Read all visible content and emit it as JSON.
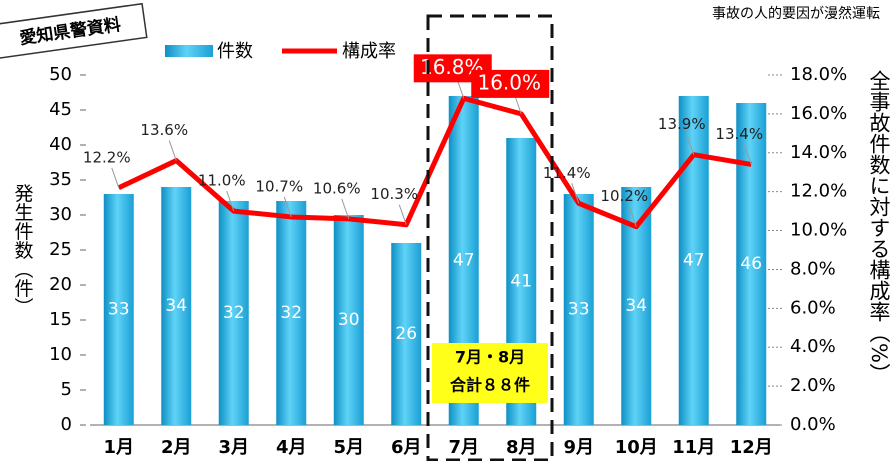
{
  "chart_data": {
    "type": "bar_line",
    "source": "愛知県警資料",
    "subtitle": "事故の人的要因が漫然運転",
    "ylabel": "発生件数（件）",
    "y2label": "全事故件数に対する構成率（%）",
    "annotation": [
      "7月・8月",
      "合計８８件"
    ],
    "categories": [
      "1月",
      "2月",
      "3月",
      "4月",
      "5月",
      "6月",
      "7月",
      "8月",
      "9月",
      "10月",
      "11月",
      "12月"
    ],
    "series": [
      {
        "name": "件数",
        "type": "bar",
        "color": "#1fb4e6",
        "values": [
          33,
          34,
          32,
          32,
          30,
          26,
          47,
          41,
          33,
          34,
          47,
          46
        ]
      },
      {
        "name": "構成率",
        "type": "line",
        "axis": "y2",
        "color": "#ff0000",
        "highlight": [
          6,
          7
        ],
        "values": [
          12.2,
          13.6,
          11.0,
          10.7,
          10.6,
          10.3,
          16.8,
          16.0,
          11.4,
          10.2,
          13.9,
          13.4
        ],
        "value_labels": [
          "12.2%",
          "13.6%",
          "11.0%",
          "10.7%",
          "10.6%",
          "10.3%",
          "16.8%",
          "16.0%",
          "11.4%",
          "10.2%",
          "13.9%",
          "13.4%"
        ]
      }
    ],
    "ylim": [
      0,
      50
    ],
    "yticks": [
      0,
      5,
      10,
      15,
      20,
      25,
      30,
      35,
      40,
      45,
      50
    ],
    "y2lim": [
      0,
      18
    ],
    "y2ticks": [
      {
        "value": 0,
        "label": "0.0%"
      },
      {
        "value": 2,
        "label": "2.0%"
      },
      {
        "value": 4,
        "label": "4.0%"
      },
      {
        "value": 6,
        "label": "6.0%"
      },
      {
        "value": 8,
        "label": "8.0%"
      },
      {
        "value": 10,
        "label": "10.0%"
      },
      {
        "value": 12,
        "label": "12.0%"
      },
      {
        "value": 14,
        "label": "14.0%"
      },
      {
        "value": 16,
        "label": "16.0%"
      },
      {
        "value": 18,
        "label": "18.0%"
      }
    ]
  }
}
